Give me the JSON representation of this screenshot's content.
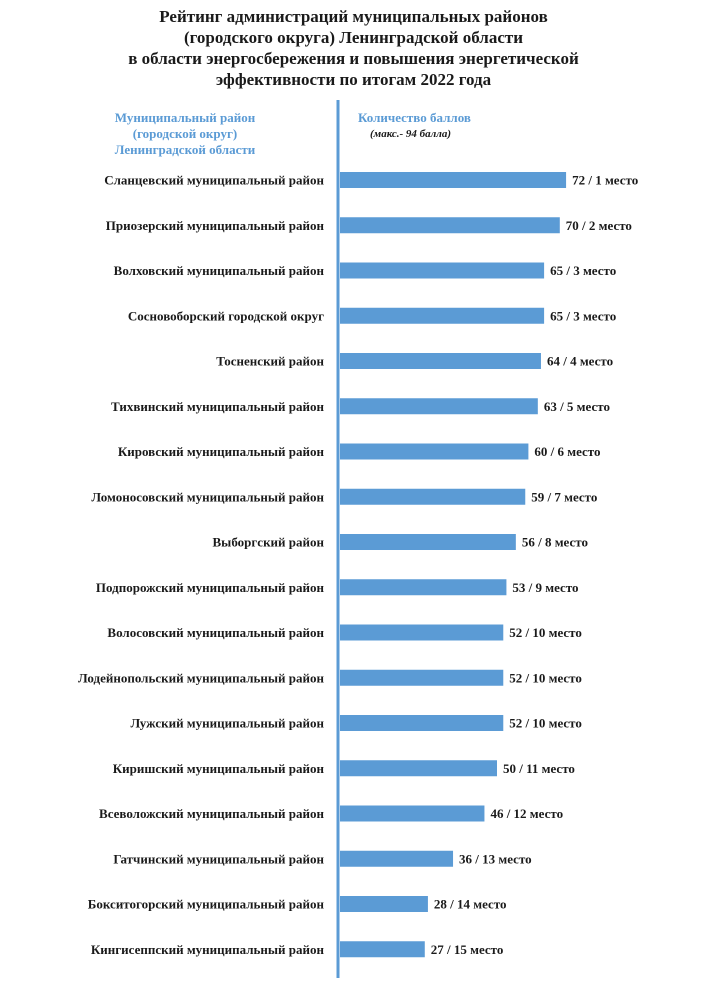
{
  "title_lines": [
    "Рейтинг администраций муниципальных районов",
    "(городского округа) Ленинградской области",
    "в области энергосбережения и повышения энергетической",
    "эффективности по итогам 2022 года"
  ],
  "header_left_lines": [
    "Муниципальный район",
    "(городской округ)",
    "Ленинградской области"
  ],
  "header_right": "Количество баллов",
  "header_right_sub": "(макс.- 94 балла)",
  "colors": {
    "bar": "#5b9bd5",
    "axis": "#5b9bd5",
    "header": "#5b9bd5"
  },
  "chart_data": {
    "type": "bar",
    "orientation": "horizontal",
    "xlim": [
      0,
      94
    ],
    "grid": false,
    "categories": [
      "Сланцевский муниципальный район",
      "Приозерский  муниципальный район",
      "Волховский муниципальный район",
      "Сосновоборский городской округ",
      "Тосненский район",
      "Тихвинский муниципальный район",
      "Кировский муниципальный район",
      "Ломоносовский муниципальный район",
      "Выборгский район",
      "Подпорожский муниципальный район",
      "Волосовский муниципальный район",
      "Лодейнопольский муниципальный район",
      "Лужский муниципальный район",
      "Киришский  муниципальный район",
      "Всеволожский муниципальный район",
      "Гатчинский муниципальный район",
      "Бокситогорский муниципальный район",
      "Кингисеппский  муниципальный район"
    ],
    "values": [
      72,
      70,
      65,
      65,
      64,
      63,
      60,
      59,
      56,
      53,
      52,
      52,
      52,
      50,
      46,
      36,
      28,
      27
    ],
    "data_labels": [
      "72 / 1 место",
      "70 / 2 место",
      "65 / 3 место",
      "65 / 3 место",
      "64 / 4 место",
      "63 / 5 место",
      "60 / 6 место",
      "59 / 7 место",
      "56 / 8 место",
      "53 / 9 место",
      "52 / 10 место",
      "52 / 10 место",
      "52 / 10 место",
      "50 / 11 место",
      "46 / 12 место",
      "36 / 13 место",
      "28 / 14 место",
      "27 / 15 место"
    ]
  }
}
